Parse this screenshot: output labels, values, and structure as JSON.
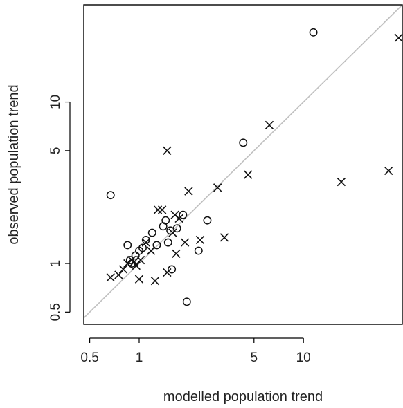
{
  "chart_data": {
    "type": "scatter",
    "title": "",
    "xlabel": "modelled population trend",
    "ylabel": "observed population trend",
    "x_scale": "log",
    "y_scale": "log",
    "xlim": [
      0.46,
      40
    ],
    "ylim": [
      0.42,
      40
    ],
    "x_ticks": [
      0.5,
      1,
      5,
      10
    ],
    "x_tick_labels": [
      "0.5",
      "1",
      "5",
      "10"
    ],
    "y_ticks": [
      0.5,
      1,
      5,
      10
    ],
    "y_tick_labels": [
      "0.5",
      "1",
      "5",
      "10"
    ],
    "grid": false,
    "reference_line": "y = x",
    "reference_line_color": "#c0c0c0",
    "series": [
      {
        "marker": "circle",
        "points": [
          [
            0.67,
            2.65
          ],
          [
            0.85,
            1.3
          ],
          [
            0.88,
            1.05
          ],
          [
            0.9,
            1.0
          ],
          [
            0.95,
            1.12
          ],
          [
            1.0,
            1.2
          ],
          [
            1.05,
            1.25
          ],
          [
            1.1,
            1.4
          ],
          [
            1.2,
            1.55
          ],
          [
            1.28,
            1.3
          ],
          [
            1.4,
            1.7
          ],
          [
            1.45,
            1.85
          ],
          [
            1.5,
            1.35
          ],
          [
            1.58,
            0.92
          ],
          [
            1.55,
            1.6
          ],
          [
            1.7,
            1.65
          ],
          [
            1.85,
            2.0
          ],
          [
            1.95,
            0.58
          ],
          [
            2.3,
            1.2
          ],
          [
            2.6,
            1.85
          ],
          [
            4.3,
            5.6
          ],
          [
            11.5,
            27.0
          ]
        ]
      },
      {
        "marker": "cross",
        "points": [
          [
            0.67,
            0.82
          ],
          [
            0.75,
            0.85
          ],
          [
            0.8,
            0.92
          ],
          [
            0.85,
            1.0
          ],
          [
            0.9,
            1.05
          ],
          [
            0.93,
            1.02
          ],
          [
            0.96,
            0.97
          ],
          [
            1.0,
            0.8
          ],
          [
            1.02,
            1.05
          ],
          [
            1.1,
            1.35
          ],
          [
            1.18,
            1.2
          ],
          [
            1.25,
            0.78
          ],
          [
            1.3,
            2.15
          ],
          [
            1.38,
            2.15
          ],
          [
            1.48,
            0.88
          ],
          [
            1.48,
            5.0
          ],
          [
            1.6,
            1.55
          ],
          [
            1.65,
            2.0
          ],
          [
            1.68,
            1.15
          ],
          [
            1.75,
            1.9
          ],
          [
            1.9,
            1.35
          ],
          [
            2.0,
            2.8
          ],
          [
            2.35,
            1.4
          ],
          [
            3.0,
            2.95
          ],
          [
            3.3,
            1.45
          ],
          [
            4.6,
            3.55
          ],
          [
            6.2,
            7.2
          ],
          [
            17.0,
            3.2
          ],
          [
            33.0,
            3.75
          ],
          [
            38.0,
            25.0
          ]
        ]
      }
    ]
  },
  "colors": {
    "marker": "#111111",
    "frame": "#000000",
    "reference_line": "#c0c0c0",
    "background": "#ffffff"
  }
}
